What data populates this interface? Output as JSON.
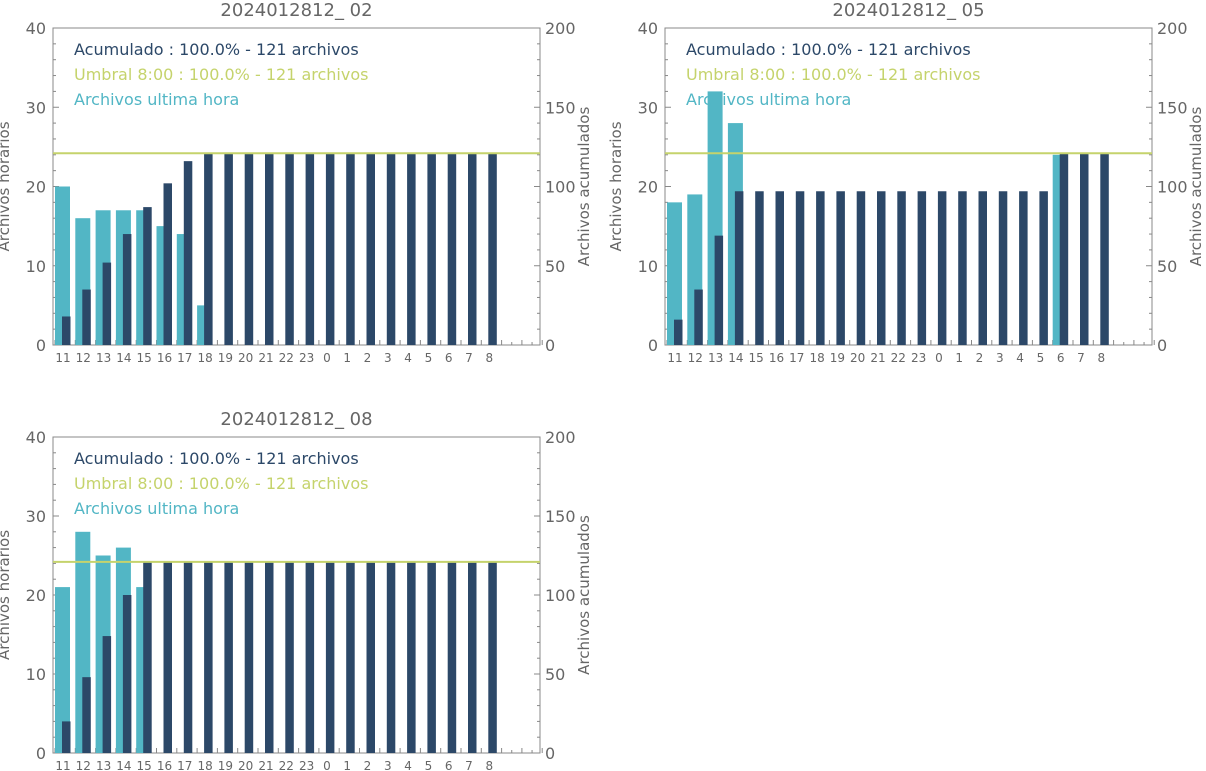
{
  "colors": {
    "hourly": "#52b6c5",
    "cumulative": "#2c4868",
    "threshold": "#c5d36c",
    "text": "#666666",
    "axis": "#888888"
  },
  "chart_data": [
    {
      "type": "bar",
      "title": "2024012812_ 02",
      "ylabel_left": "Archivos horarios",
      "ylabel_right": "Archivos acumulados",
      "ylim_left": [
        0,
        40
      ],
      "ylim_right": [
        0,
        200
      ],
      "yticks_left": [
        "0",
        "10",
        "20",
        "30",
        "40"
      ],
      "yticks_right": [
        "0",
        "50",
        "100",
        "150",
        "200"
      ],
      "categories": [
        "11",
        "12",
        "13",
        "14",
        "15",
        "16",
        "17",
        "18",
        "19",
        "20",
        "21",
        "22",
        "23",
        "0",
        "1",
        "2",
        "3",
        "4",
        "5",
        "6",
        "7",
        "8"
      ],
      "legend": [
        {
          "text": "Acumulado : 100.0% - 121 archivos",
          "color": "cumulative"
        },
        {
          "text": "Umbral 8:00 : 100.0% - 121 archivos",
          "color": "threshold"
        },
        {
          "text": "Archivos ultima hora",
          "color": "hourly"
        }
      ],
      "threshold": 121,
      "series": [
        {
          "values": [
            20,
            16,
            17,
            17,
            17,
            15,
            14,
            5,
            null,
            null,
            null,
            null,
            null,
            null,
            null,
            null,
            null,
            null,
            null,
            null,
            null,
            null
          ]
        },
        {
          "values": [
            18,
            35,
            52,
            70,
            87,
            102,
            116,
            121,
            121,
            121,
            121,
            121,
            121,
            121,
            121,
            121,
            121,
            121,
            121,
            121,
            121,
            121
          ]
        }
      ]
    },
    {
      "type": "bar",
      "title": "2024012812_ 05",
      "ylabel_left": "Archivos horarios",
      "ylabel_right": "Archivos acumulados",
      "ylim_left": [
        0,
        40
      ],
      "ylim_right": [
        0,
        200
      ],
      "yticks_left": [
        "0",
        "10",
        "20",
        "30",
        "40"
      ],
      "yticks_right": [
        "0",
        "50",
        "100",
        "150",
        "200"
      ],
      "categories": [
        "11",
        "12",
        "13",
        "14",
        "15",
        "16",
        "17",
        "18",
        "19",
        "20",
        "21",
        "22",
        "23",
        "0",
        "1",
        "2",
        "3",
        "4",
        "5",
        "6",
        "7",
        "8"
      ],
      "legend": [
        {
          "text": "Acumulado : 100.0% - 121 archivos",
          "color": "cumulative"
        },
        {
          "text": "Umbral 8:00 : 100.0% - 121 archivos",
          "color": "threshold"
        },
        {
          "text": "Archivos ultima hora",
          "color": "hourly"
        }
      ],
      "threshold": 121,
      "series": [
        {
          "values": [
            18,
            19,
            32,
            28,
            null,
            null,
            null,
            null,
            null,
            null,
            null,
            null,
            null,
            null,
            null,
            null,
            null,
            null,
            null,
            24,
            null,
            null
          ]
        },
        {
          "values": [
            16,
            35,
            69,
            97,
            97,
            97,
            97,
            97,
            97,
            97,
            97,
            97,
            97,
            97,
            97,
            97,
            97,
            97,
            97,
            121,
            121,
            121
          ]
        }
      ]
    },
    {
      "type": "bar",
      "title": "2024012812_ 08",
      "ylabel_left": "Archivos horarios",
      "ylabel_right": "Archivos acumulados",
      "ylim_left": [
        0,
        40
      ],
      "ylim_right": [
        0,
        200
      ],
      "yticks_left": [
        "0",
        "10",
        "20",
        "30",
        "40"
      ],
      "yticks_right": [
        "0",
        "50",
        "100",
        "150",
        "200"
      ],
      "categories": [
        "11",
        "12",
        "13",
        "14",
        "15",
        "16",
        "17",
        "18",
        "19",
        "20",
        "21",
        "22",
        "23",
        "0",
        "1",
        "2",
        "3",
        "4",
        "5",
        "6",
        "7",
        "8"
      ],
      "legend": [
        {
          "text": "Acumulado : 100.0% - 121 archivos",
          "color": "cumulative"
        },
        {
          "text": "Umbral 8:00 : 100.0% - 121 archivos",
          "color": "threshold"
        },
        {
          "text": "Archivos ultima hora",
          "color": "hourly"
        }
      ],
      "threshold": 121,
      "series": [
        {
          "values": [
            21,
            28,
            25,
            26,
            21,
            null,
            null,
            null,
            null,
            null,
            null,
            null,
            null,
            null,
            null,
            null,
            null,
            null,
            null,
            null,
            null,
            null
          ]
        },
        {
          "values": [
            20,
            48,
            74,
            100,
            121,
            121,
            121,
            121,
            121,
            121,
            121,
            121,
            121,
            121,
            121,
            121,
            121,
            121,
            121,
            121,
            121,
            121
          ]
        }
      ]
    }
  ]
}
